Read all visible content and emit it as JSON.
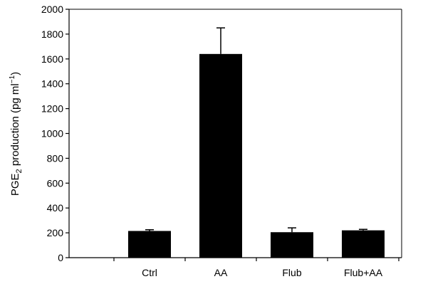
{
  "chart_data": {
    "type": "bar",
    "categories": [
      "Ctrl",
      "AA",
      "Flub",
      "Flub+AA"
    ],
    "values": [
      215,
      1640,
      205,
      220
    ],
    "errors": [
      10,
      210,
      35,
      8
    ],
    "title": "",
    "xlabel": "",
    "ylabel": {
      "main": "PGE",
      "sub": "2",
      "rest": " production (pg ml",
      "sup": "−1",
      "end": ")"
    },
    "ylim": [
      0,
      2000
    ],
    "yticks": [
      0,
      200,
      400,
      600,
      800,
      1000,
      1200,
      1400,
      1600,
      1800,
      2000
    ],
    "grid": false,
    "legend": "none",
    "colors": {
      "bar": "#000000",
      "axis": "#000000"
    }
  }
}
